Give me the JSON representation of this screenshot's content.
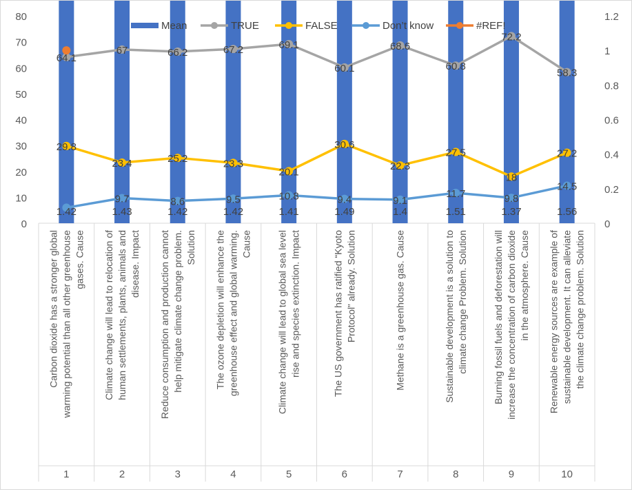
{
  "chart_data": {
    "type": "line",
    "title": "",
    "y_axis": {
      "min": 0,
      "max": 80,
      "step": 10
    },
    "y2_axis": {
      "min": 0,
      "max": 1.2,
      "step": 0.2
    },
    "y_tick_labels": [
      "0",
      "10",
      "20",
      "30",
      "40",
      "50",
      "60",
      "70",
      "80"
    ],
    "y2_tick_labels": [
      "0",
      "0.2",
      "0.4",
      "0.6",
      "0.8",
      "1",
      "1.2"
    ],
    "categories": [
      {
        "number": "1",
        "statement": [
          "Carbon dioxide has a stronger global",
          "warming potential than all other greenhouse",
          "gases. Cause"
        ]
      },
      {
        "number": "2",
        "statement": [
          "Climate change will lead to relocation of",
          "human settlements, plants, animals and",
          "disease. Impact"
        ]
      },
      {
        "number": "3",
        "statement": [
          "Reduce consumption and production cannot",
          "help mitigate climate change problem.",
          "Solution"
        ]
      },
      {
        "number": "4",
        "statement": [
          "The ozone depletion will enhance the",
          "greenhouse effect and global warming.",
          "Cause"
        ]
      },
      {
        "number": "5",
        "statement": [
          "Climate change will lead to global sea level",
          "rise and species extinction. Impact"
        ]
      },
      {
        "number": "6",
        "statement": [
          "The US government has ratified “Kyoto",
          "Protocol” already. Solution"
        ]
      },
      {
        "number": "7",
        "statement": [
          "Methane is a greenhouse gas. Cause"
        ]
      },
      {
        "number": "8",
        "statement": [
          "Sustainable development is a solution to",
          "climate change Problem. Solution"
        ]
      },
      {
        "number": "9",
        "statement": [
          "Burning fossil fuels and deforestation will",
          "increase the concentration of carbon dioxide",
          "in the atmosphere. Cause"
        ]
      },
      {
        "number": "10",
        "statement": [
          "Renewable energy sources are example of",
          "sustainable development.  It can alleviate",
          "the climate change problem. Solution"
        ]
      }
    ],
    "series": [
      {
        "name": "Mean",
        "type": "bar",
        "axis": "secondary",
        "color": "#4472C4",
        "values": [
          1.42,
          1.43,
          1.42,
          1.42,
          1.41,
          1.49,
          1.4,
          1.51,
          1.37,
          1.56
        ],
        "labels": [
          "1.42",
          "1.43",
          "1.42",
          "1.42",
          "1.41",
          "1.49",
          "1.4",
          "1.51",
          "1.37",
          "1.56"
        ]
      },
      {
        "name": "TRUE",
        "type": "line",
        "axis": "primary",
        "color": "#A5A5A5",
        "values": [
          64.1,
          67,
          66.2,
          67.2,
          69.1,
          60.1,
          68.6,
          60.8,
          72.2,
          58.3
        ],
        "labels": [
          "64.1",
          "67",
          "66.2",
          "67.2",
          "69.1",
          "60.1",
          "68.6",
          "60.8",
          "72.2",
          "58.3"
        ]
      },
      {
        "name": "FALSE",
        "type": "line",
        "axis": "primary",
        "color": "#FFC000",
        "values": [
          29.8,
          23.4,
          25.2,
          23.3,
          20.1,
          30.6,
          22.3,
          27.5,
          18,
          27.2
        ],
        "labels": [
          "29.8",
          "23.4",
          "25.2",
          "23.3",
          "20.1",
          "30.6",
          "22.3",
          "27.5",
          "18",
          "27.2"
        ]
      },
      {
        "name": "Don’t know",
        "type": "line",
        "axis": "primary",
        "color": "#5B9BD5",
        "values": [
          6,
          9.7,
          8.6,
          9.5,
          10.8,
          9.4,
          9.1,
          11.7,
          9.8,
          14.5
        ],
        "labels": [
          "",
          "9.7",
          "8.6",
          "9.5",
          "10.8",
          "9.4",
          "9.1",
          "11.7",
          "9.8",
          "14.5"
        ]
      },
      {
        "name": "#REF!",
        "type": "line",
        "axis": "secondary",
        "color": "#ED7D31",
        "values": [
          1,
          null,
          null,
          null,
          null,
          null,
          null,
          null,
          null,
          null
        ],
        "labels": [
          "",
          "",
          "",
          "",
          "",
          "",
          "",
          "",
          "",
          ""
        ]
      }
    ],
    "legend_position": "top"
  }
}
